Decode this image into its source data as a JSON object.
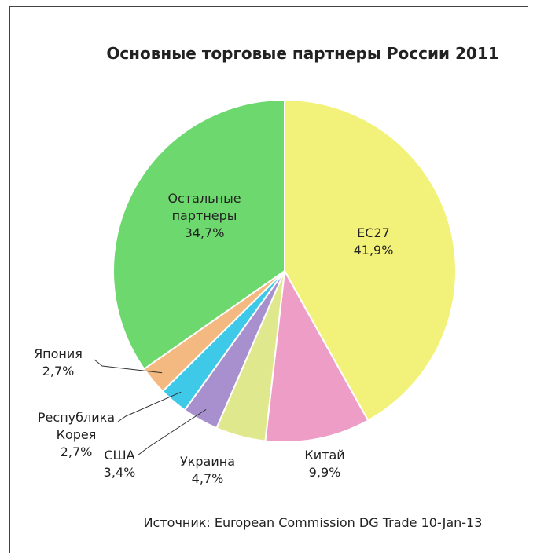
{
  "chart_data": {
    "type": "pie",
    "title": "Основные торговые партнеры России 2011",
    "source": "Источник: European Commission DG Trade 10-Jan-13",
    "slices": [
      {
        "key": "eu27",
        "name_lines": [
          "ЕС27"
        ],
        "label": "41,9%",
        "value": 41.9,
        "color": "#f2f27a"
      },
      {
        "key": "china",
        "name_lines": [
          "Китай"
        ],
        "label": "9,9%",
        "value": 9.9,
        "color": "#ee9ec6"
      },
      {
        "key": "ukraine",
        "name_lines": [
          "Украина"
        ],
        "label": "4,7%",
        "value": 4.7,
        "color": "#dfe88c"
      },
      {
        "key": "usa",
        "name_lines": [
          "США"
        ],
        "label": "3,4%",
        "value": 3.4,
        "color": "#a890cf"
      },
      {
        "key": "korea",
        "name_lines": [
          "Республика",
          "Корея"
        ],
        "label": "2,7%",
        "value": 2.7,
        "color": "#3ec9e8"
      },
      {
        "key": "japan",
        "name_lines": [
          "Япония"
        ],
        "label": "2,7%",
        "value": 2.7,
        "color": "#f4b980"
      },
      {
        "key": "others",
        "name_lines": [
          "Остальные",
          "партнеры"
        ],
        "label": "34,7%",
        "value": 34.7,
        "color": "#6dd86d"
      }
    ]
  }
}
